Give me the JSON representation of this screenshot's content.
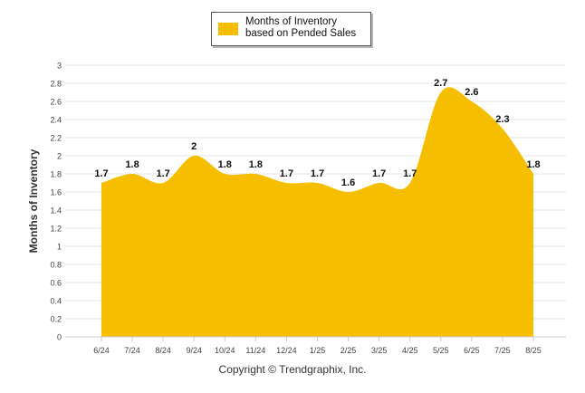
{
  "chart_data": {
    "type": "area",
    "categories": [
      "6/24",
      "7/24",
      "8/24",
      "9/24",
      "10/24",
      "11/24",
      "12/24",
      "1/25",
      "2/25",
      "3/25",
      "4/25",
      "5/25",
      "6/25",
      "7/25",
      "8/25"
    ],
    "series": [
      {
        "name": "Months of Inventory based on Pended Sales",
        "values": [
          1.7,
          1.8,
          1.7,
          2,
          1.8,
          1.8,
          1.7,
          1.7,
          1.6,
          1.7,
          1.7,
          2.7,
          2.6,
          2.3,
          1.8
        ]
      }
    ],
    "data_labels": [
      "1.7",
      "1.8",
      "1.7",
      "2",
      "1.8",
      "1.8",
      "1.7",
      "1.7",
      "1.6",
      "1.7",
      "1.7",
      "2.7",
      "2.6",
      "2.3",
      "1.8"
    ],
    "ylabel": "Months of Inventory",
    "xlabel": "",
    "ylim": [
      0,
      3
    ],
    "yticks": [
      "0",
      "0.2",
      "0.4",
      "0.6",
      "0.8",
      "1",
      "1.2",
      "1.4",
      "1.6",
      "1.8",
      "2",
      "2.2",
      "2.4",
      "2.6",
      "2.8",
      "3"
    ],
    "grid": true,
    "legend_position": "top-center",
    "fill_color": "#F5BE00",
    "label_color": "#111111"
  },
  "legend": {
    "label": "Months of Inventory based on Pended Sales"
  },
  "footer": {
    "copyright": "Copyright © Trendgraphix, Inc."
  }
}
